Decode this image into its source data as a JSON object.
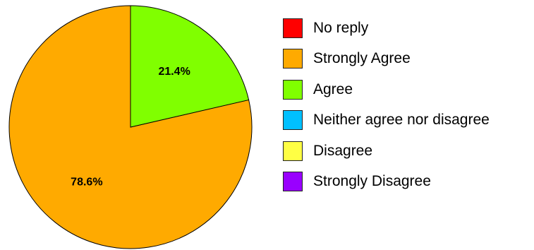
{
  "chart_data": {
    "type": "pie",
    "categories": [
      "No reply",
      "Strongly Agree",
      "Agree",
      "Neither agree nor disagree",
      "Disagree",
      "Strongly Disagree"
    ],
    "values": [
      0,
      78.6,
      21.4,
      0,
      0,
      0
    ],
    "data_labels": [
      "",
      "78.6%",
      "21.4%",
      "",
      "",
      ""
    ],
    "colors": [
      "#ff0000",
      "#ffaa00",
      "#80ff00",
      "#00c0ff",
      "#ffff44",
      "#9900ff"
    ],
    "legend_position": "right",
    "title": ""
  }
}
